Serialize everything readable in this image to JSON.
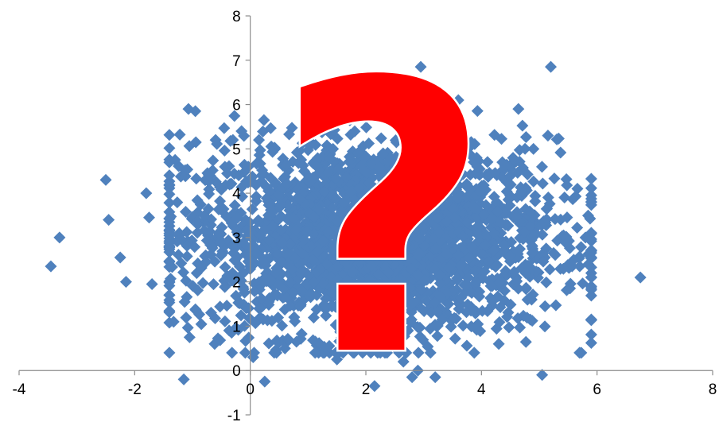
{
  "chart_data": {
    "type": "scatter",
    "title": "",
    "xlabel": "",
    "ylabel": "",
    "xlim": [
      -4,
      8
    ],
    "ylim": [
      -1,
      8
    ],
    "x_ticks": [
      "-4",
      "-2",
      "0",
      "2",
      "4",
      "6",
      "8"
    ],
    "y_ticks": [
      "-1",
      "0",
      "1",
      "2",
      "3",
      "4",
      "5",
      "6",
      "7",
      "8"
    ],
    "grid": false,
    "legend": "none",
    "marker": "diamond",
    "series_color": "#4f81bd",
    "distribution": {
      "x_mean": 2.1,
      "x_sd": 1.6,
      "y_mean": 3.0,
      "y_sd": 1.1,
      "count": 2600
    },
    "outliers": [
      [
        -3.45,
        2.35
      ],
      [
        -3.3,
        3.0
      ],
      [
        -2.5,
        4.3
      ],
      [
        -2.45,
        3.4
      ],
      [
        -2.25,
        2.55
      ],
      [
        -2.15,
        2.0
      ],
      [
        -1.8,
        4.0
      ],
      [
        -1.75,
        3.45
      ],
      [
        -1.7,
        1.95
      ],
      [
        -1.3,
        4.75
      ],
      [
        -1.15,
        -0.2
      ],
      [
        -1.05,
        0.75
      ],
      [
        -0.95,
        5.85
      ],
      [
        0.05,
        0.3
      ],
      [
        0.25,
        -0.25
      ],
      [
        1.5,
        0.25
      ],
      [
        2.15,
        -0.35
      ],
      [
        2.65,
        0.2
      ],
      [
        2.8,
        -0.15
      ],
      [
        2.9,
        0.0
      ],
      [
        2.95,
        6.85
      ],
      [
        3.2,
        -0.15
      ],
      [
        3.6,
        6.1
      ],
      [
        4.3,
        0.6
      ],
      [
        5.05,
        -0.1
      ],
      [
        5.2,
        6.85
      ],
      [
        5.15,
        5.3
      ],
      [
        5.7,
        2.35
      ],
      [
        5.85,
        2.4
      ],
      [
        6.75,
        2.1
      ],
      [
        5.9,
        3.8
      ],
      [
        5.8,
        3.0
      ],
      [
        5.1,
        1.45
      ],
      [
        4.9,
        5.0
      ],
      [
        0.6,
        0.5
      ],
      [
        -0.6,
        5.2
      ],
      [
        -0.3,
        5.2
      ],
      [
        0.15,
        5.2
      ],
      [
        1.0,
        6.05
      ],
      [
        2.1,
        5.85
      ]
    ],
    "annotation": {
      "glyph": "?",
      "color": "#ff0000",
      "outline": "#ffffff"
    }
  }
}
